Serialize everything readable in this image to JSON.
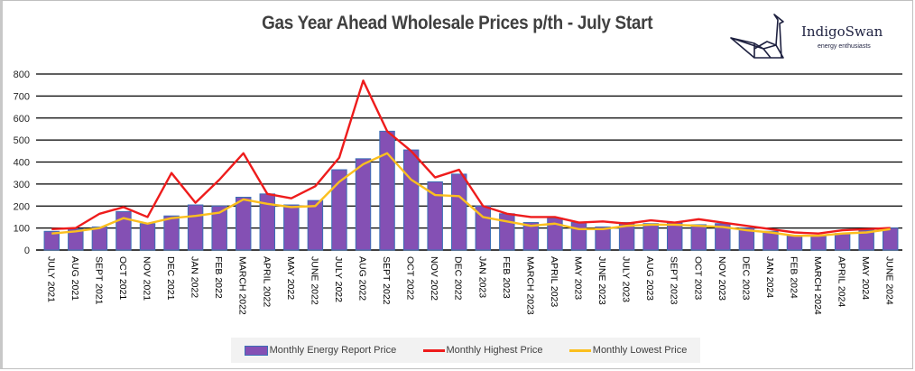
{
  "header": {
    "title": "Gas Year Ahead Wholesale Prices p/th - July Start",
    "logo_name": "IndigoSwan",
    "logo_tagline": "energy enthusiasts"
  },
  "colors": {
    "bar_fill": "#8450b4",
    "bar_border": "#3b6fb6",
    "highest_line": "#ee1c1c",
    "lowest_line": "#fbbf1e",
    "grid": "#000000"
  },
  "chart_data": {
    "type": "bar",
    "title": "Gas Year Ahead Wholesale Prices p/th - July Start",
    "xlabel": "",
    "ylabel": "",
    "ylim": [
      0,
      800
    ],
    "yticks": [
      0,
      100,
      200,
      300,
      400,
      500,
      600,
      700,
      800
    ],
    "grid": true,
    "legend_position": "bottom",
    "categories": [
      "JULY 2021",
      "AUG 2021",
      "SEPT 2021",
      "OCT 2021",
      "NOV 2021",
      "DEC 2021",
      "JAN 2022",
      "FEB 2022",
      "MARCH 2022",
      "APRIL 2022",
      "MAY 2022",
      "JUNE 2022",
      "JULY 2022",
      "AUG 2022",
      "SEPT 2022",
      "OCT 2022",
      "NOV 2022",
      "DEC 2022",
      "JAN 2023",
      "FEB 2023",
      "MARCH 2023",
      "APRIL 2023",
      "MAY 2023",
      "JUNE 2023",
      "JULY 2023",
      "AUG 2023",
      "SEPT 2023",
      "OCT 2023",
      "NOV 2023",
      "DEC 2023",
      "JAN 2024",
      "FEB 2024",
      "MARCH 2024",
      "APRIL 2024",
      "MAY 2024",
      "JUNE 2024"
    ],
    "series": [
      {
        "name": "Monthly Energy Report Price",
        "kind": "bar",
        "values": [
          85,
          95,
          105,
          175,
          120,
          155,
          205,
          200,
          240,
          255,
          205,
          225,
          365,
          415,
          540,
          455,
          310,
          345,
          200,
          165,
          125,
          145,
          125,
          105,
          125,
          120,
          125,
          115,
          120,
          100,
          85,
          65,
          65,
          75,
          90,
          100
        ]
      },
      {
        "name": "Monthly Highest Price",
        "kind": "line",
        "values": [
          95,
          100,
          165,
          195,
          150,
          350,
          215,
          320,
          440,
          255,
          235,
          290,
          420,
          770,
          540,
          450,
          330,
          365,
          200,
          165,
          150,
          150,
          125,
          130,
          120,
          135,
          125,
          140,
          125,
          110,
          95,
          80,
          75,
          90,
          95,
          100
        ]
      },
      {
        "name": "Monthly Lowest Price",
        "kind": "line",
        "values": [
          75,
          85,
          100,
          145,
          120,
          145,
          155,
          170,
          230,
          210,
          195,
          200,
          310,
          390,
          440,
          320,
          250,
          245,
          150,
          130,
          110,
          120,
          95,
          95,
          110,
          115,
          115,
          110,
          105,
          90,
          80,
          65,
          65,
          75,
          80,
          95
        ]
      }
    ]
  },
  "legend": {
    "items": [
      {
        "label": "Monthly Energy Report Price"
      },
      {
        "label": "Monthly Highest Price"
      },
      {
        "label": "Monthly Lowest Price"
      }
    ]
  }
}
